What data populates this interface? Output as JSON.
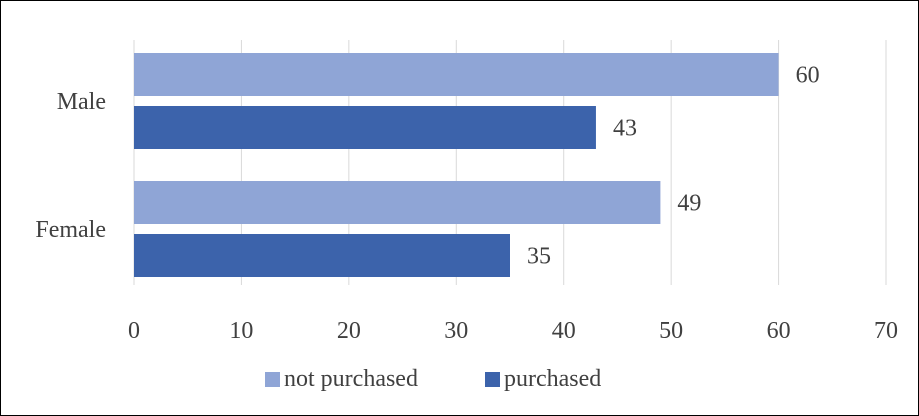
{
  "chart_data": {
    "type": "bar",
    "orientation": "horizontal",
    "categories": [
      "Male",
      "Female"
    ],
    "series": [
      {
        "name": "not purchased",
        "values": [
          60,
          49
        ],
        "color": "#8FA5D6"
      },
      {
        "name": "purchased",
        "values": [
          43,
          35
        ],
        "color": "#3C63AB"
      }
    ],
    "title": "",
    "xlabel": "",
    "ylabel": "",
    "xlim": [
      0,
      70
    ],
    "x_ticks": [
      "0",
      "10",
      "20",
      "30",
      "40",
      "50",
      "60",
      "70"
    ],
    "grid": "vertical",
    "legend": "bottom",
    "data_labels": true
  },
  "colors": {
    "gridline": "#D9D9D9",
    "text": "#404040",
    "border": "#000000"
  }
}
